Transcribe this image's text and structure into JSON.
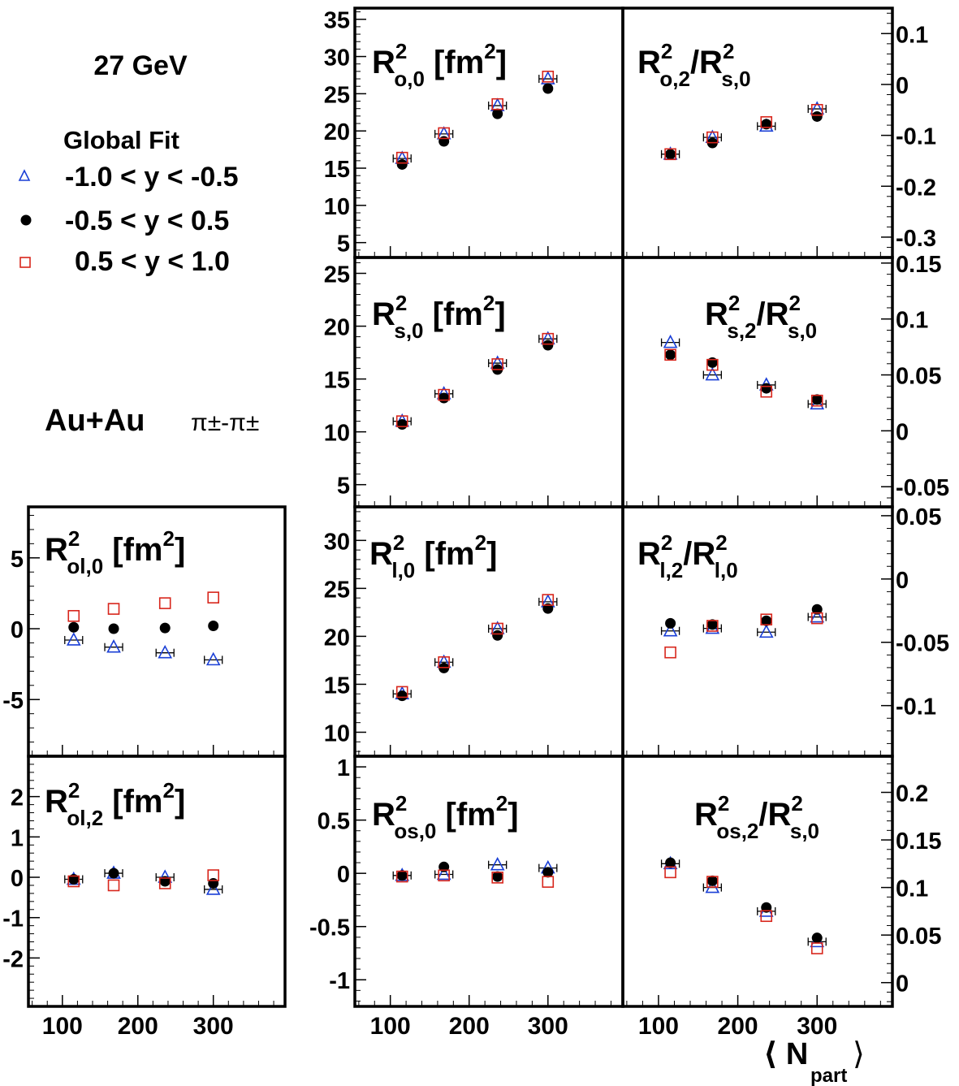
{
  "energy_label": "27 GeV",
  "system_label": "Au+Au",
  "pair_label": "π±-π±",
  "legend": {
    "title": "Global Fit",
    "entries": [
      {
        "label": "-1.0 < y < -0.5",
        "marker": "open-triangle",
        "color": "#1a3fd6"
      },
      {
        "label": "-0.5 < y < 0.5",
        "marker": "filled-circle",
        "color": "#000000"
      },
      {
        "label": "0.5 < y < 1.0",
        "marker": "open-square",
        "color": "#d8261c"
      }
    ]
  },
  "x_axis": {
    "label_main": "⟨ N",
    "label_sub": "part",
    "label_close": "⟩",
    "range": [
      55,
      395
    ],
    "ticks": [
      100,
      200,
      300
    ]
  },
  "chart_data": [
    {
      "id": "Ro0",
      "type": "scatter",
      "title": "R²o,0 [fm²]",
      "ylim": [
        3,
        36.5
      ],
      "yticks": [
        5,
        10,
        15,
        20,
        25,
        30,
        35
      ],
      "x": [
        115,
        168,
        236,
        300
      ],
      "series": [
        {
          "name": "-1.0 < y < -0.5",
          "values": [
            16.3,
            19.6,
            23.4,
            27.0
          ]
        },
        {
          "name": "-0.5 < y < 0.5",
          "values": [
            15.5,
            18.6,
            22.3,
            25.7
          ]
        },
        {
          "name": "0.5 < y < 1.0",
          "values": [
            16.4,
            19.7,
            23.6,
            27.3
          ]
        }
      ]
    },
    {
      "id": "Ro2",
      "type": "scatter",
      "title": "R²o,2/R²s,0",
      "ylim": [
        -0.34,
        0.15
      ],
      "yticks": [
        -0.3,
        -0.2,
        -0.1,
        0,
        0.1
      ],
      "x": [
        115,
        168,
        236,
        300
      ],
      "series": [
        {
          "name": "-1.0 < y < -0.5",
          "values": [
            -0.137,
            -0.104,
            -0.082,
            -0.048
          ]
        },
        {
          "name": "-0.5 < y < 0.5",
          "values": [
            -0.137,
            -0.115,
            -0.078,
            -0.063
          ]
        },
        {
          "name": "0.5 < y < 1.0",
          "values": [
            -0.137,
            -0.104,
            -0.074,
            -0.05
          ]
        }
      ]
    },
    {
      "id": "Rs0",
      "type": "scatter",
      "title": "R²s,0 [fm²]",
      "ylim": [
        2.9,
        26.5
      ],
      "yticks": [
        5,
        10,
        15,
        20,
        25
      ],
      "x": [
        115,
        168,
        236,
        300
      ],
      "series": [
        {
          "name": "-1.0 < y < -0.5",
          "values": [
            11.0,
            13.6,
            16.5,
            18.8
          ]
        },
        {
          "name": "-0.5 < y < 0.5",
          "values": [
            10.7,
            13.2,
            15.9,
            18.2
          ]
        },
        {
          "name": "0.5 < y < 1.0",
          "values": [
            11.0,
            13.5,
            16.4,
            18.8
          ]
        }
      ]
    },
    {
      "id": "Rs2",
      "type": "scatter",
      "title": "R²s,2/R²s,0",
      "ylim": [
        -0.068,
        0.155
      ],
      "yticks": [
        -0.05,
        0,
        0.05,
        0.1,
        0.15
      ],
      "x": [
        115,
        168,
        236,
        300
      ],
      "series": [
        {
          "name": "-1.0 < y < -0.5",
          "values": [
            0.079,
            0.05,
            0.041,
            0.024
          ]
        },
        {
          "name": "-0.5 < y < 0.5",
          "values": [
            0.068,
            0.061,
            0.038,
            0.028
          ]
        },
        {
          "name": "0.5 < y < 1.0",
          "values": [
            0.068,
            0.059,
            0.035,
            0.027
          ]
        }
      ]
    },
    {
      "id": "Rl0",
      "type": "scatter",
      "title": "R²l,0 [fm²]",
      "ylim": [
        7.5,
        33.5
      ],
      "yticks": [
        10,
        15,
        20,
        25,
        30
      ],
      "x": [
        115,
        168,
        236,
        300
      ],
      "series": [
        {
          "name": "-1.0 < y < -0.5",
          "values": [
            14.0,
            17.3,
            20.8,
            23.6
          ]
        },
        {
          "name": "-0.5 < y < 0.5",
          "values": [
            13.8,
            16.7,
            20.1,
            22.9
          ]
        },
        {
          "name": "0.5 < y < 1.0",
          "values": [
            14.2,
            17.3,
            20.8,
            23.8
          ]
        }
      ]
    },
    {
      "id": "Rl2",
      "type": "scatter",
      "title": "R²l,2/R²l,0",
      "ylim": [
        -0.14,
        0.057
      ],
      "yticks": [
        -0.1,
        -0.05,
        0,
        0.05
      ],
      "x": [
        115,
        168,
        236,
        300
      ],
      "series": [
        {
          "name": "-1.0 < y < -0.5",
          "values": [
            -0.041,
            -0.039,
            -0.042,
            -0.03
          ]
        },
        {
          "name": "-0.5 < y < 0.5",
          "values": [
            -0.035,
            -0.036,
            -0.033,
            -0.024
          ]
        },
        {
          "name": "0.5 < y < 1.0",
          "values": [
            -0.058,
            -0.037,
            -0.032,
            -0.031
          ]
        }
      ]
    },
    {
      "id": "Rol0",
      "type": "scatter",
      "title": "R²ol,0 [fm²]",
      "ylim": [
        -9,
        8.6
      ],
      "yticks": [
        -5,
        0,
        5
      ],
      "x": [
        115,
        168,
        236,
        300
      ],
      "series": [
        {
          "name": "-1.0 < y < -0.5",
          "values": [
            -0.8,
            -1.3,
            -1.7,
            -2.2
          ]
        },
        {
          "name": "-0.5 < y < 0.5",
          "values": [
            0.1,
            0.0,
            0.05,
            0.2
          ]
        },
        {
          "name": "0.5 < y < 1.0",
          "values": [
            0.9,
            1.4,
            1.8,
            2.2
          ]
        }
      ]
    },
    {
      "id": "Rol2",
      "type": "scatter",
      "title": "R²ol,2 [fm²]",
      "ylim": [
        -3.2,
        3.0
      ],
      "yticks": [
        -2,
        -1,
        0,
        1,
        2
      ],
      "x": [
        115,
        168,
        236,
        300
      ],
      "series": [
        {
          "name": "-1.0 < y < -0.5",
          "values": [
            -0.05,
            0.1,
            0.0,
            -0.3
          ]
        },
        {
          "name": "-0.5 < y < 0.5",
          "values": [
            -0.05,
            0.1,
            -0.1,
            -0.15
          ]
        },
        {
          "name": "0.5 < y < 1.0",
          "values": [
            -0.1,
            -0.2,
            -0.15,
            0.05
          ]
        }
      ]
    },
    {
      "id": "Ros0",
      "type": "scatter",
      "title": "R²os,0 [fm²]",
      "ylim": [
        -1.25,
        1.1
      ],
      "yticks": [
        -1,
        -0.5,
        0,
        0.5,
        1
      ],
      "x": [
        115,
        168,
        236,
        300
      ],
      "series": [
        {
          "name": "-1.0 < y < -0.5",
          "values": [
            -0.02,
            -0.01,
            0.08,
            0.05
          ]
        },
        {
          "name": "-0.5 < y < 0.5",
          "values": [
            -0.02,
            0.06,
            -0.03,
            0.01
          ]
        },
        {
          "name": "0.5 < y < 1.0",
          "values": [
            -0.03,
            -0.02,
            -0.04,
            -0.08
          ]
        }
      ]
    },
    {
      "id": "Ros2",
      "type": "scatter",
      "title": "R²os,2/R²s,0",
      "ylim": [
        -0.025,
        0.238
      ],
      "yticks": [
        0,
        0.05,
        0.1,
        0.15,
        0.2
      ],
      "x": [
        115,
        168,
        236,
        300
      ],
      "series": [
        {
          "name": "-1.0 < y < -0.5",
          "values": [
            0.125,
            0.1,
            0.075,
            0.043
          ]
        },
        {
          "name": "-0.5 < y < 0.5",
          "values": [
            0.126,
            0.107,
            0.079,
            0.047
          ]
        },
        {
          "name": "0.5 < y < 1.0",
          "values": [
            0.116,
            0.106,
            0.07,
            0.036
          ]
        }
      ]
    }
  ]
}
